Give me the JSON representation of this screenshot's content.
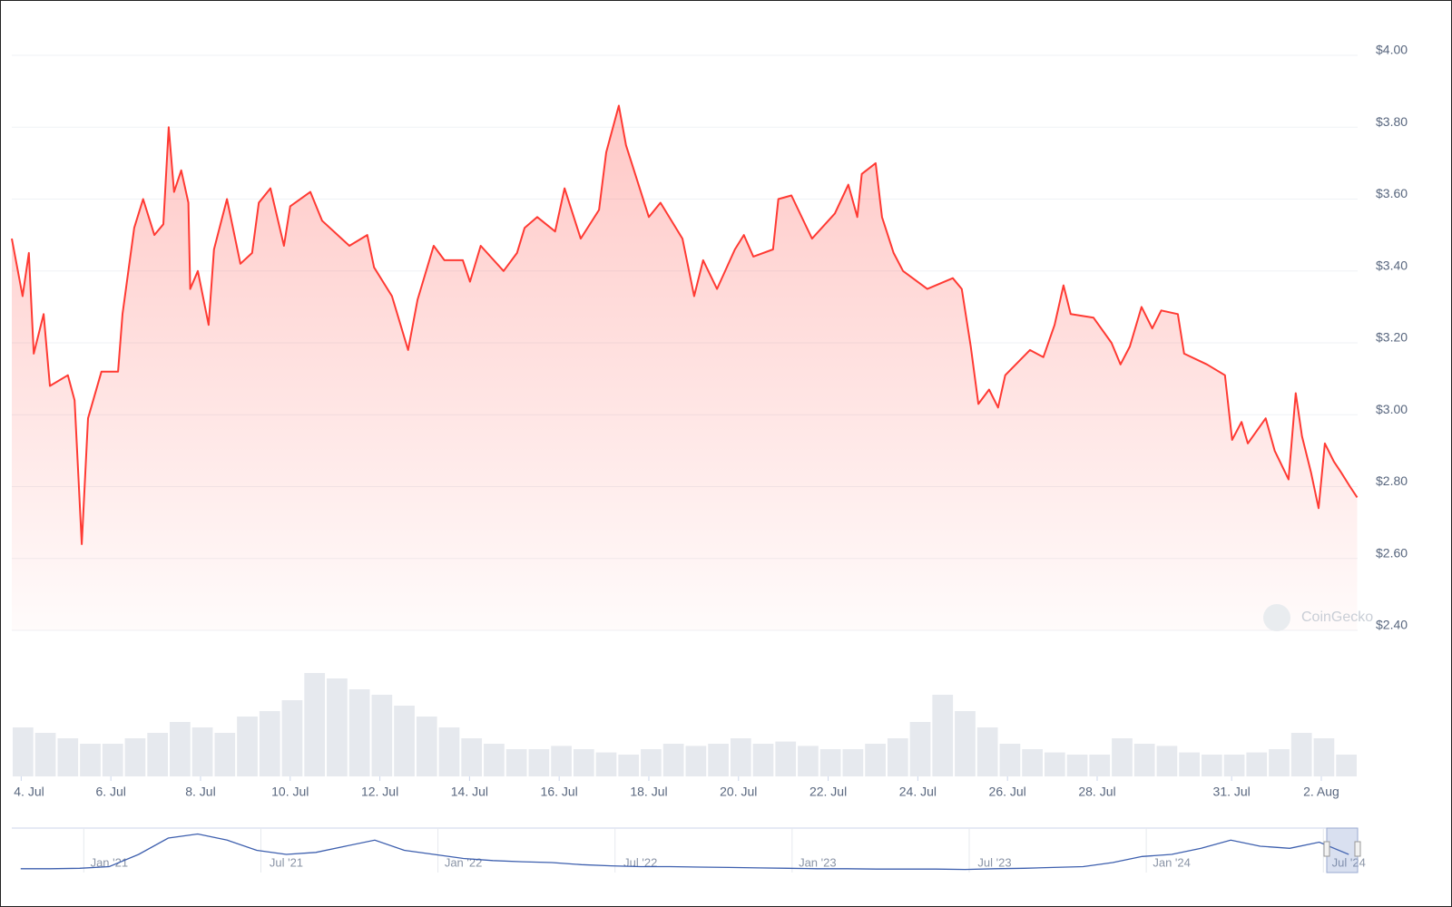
{
  "chart_data": {
    "type": "line",
    "color": "#ff3a33",
    "x": [
      3.79,
      4.03,
      4.17,
      4.28,
      4.5,
      4.64,
      5.04,
      5.19,
      5.35,
      5.49,
      5.79,
      6.16,
      6.26,
      6.52,
      6.72,
      6.97,
      7.17,
      7.29,
      7.41,
      7.57,
      7.73,
      7.77,
      7.94,
      8.18,
      8.3,
      8.59,
      8.89,
      9.15,
      9.3,
      9.56,
      9.86,
      10.0,
      10.45,
      10.71,
      11.32,
      11.72,
      11.87,
      12.27,
      12.63,
      12.84,
      13.2,
      13.44,
      13.85,
      14.01,
      14.25,
      14.76,
      15.06,
      15.23,
      15.51,
      15.91,
      16.12,
      16.48,
      16.89,
      17.05,
      17.33,
      17.49,
      18.0,
      18.26,
      18.75,
      19.01,
      19.21,
      19.52,
      19.92,
      20.12,
      20.33,
      20.77,
      20.89,
      21.18,
      21.64,
      22.15,
      22.45,
      22.65,
      22.75,
      23.06,
      23.2,
      23.46,
      23.67,
      24.21,
      24.78,
      24.98,
      25.18,
      25.35,
      25.59,
      25.79,
      25.95,
      26.5,
      26.8,
      27.05,
      27.25,
      27.41,
      27.92,
      28.32,
      28.52,
      28.73,
      28.99,
      29.23,
      29.43,
      29.8,
      29.94,
      30.45,
      30.85,
      31.01,
      31.22,
      31.36,
      31.76,
      31.96,
      32.27,
      32.43,
      32.57,
      32.77,
      32.94,
      33.08,
      33.28,
      33.44,
      33.64,
      33.8
    ],
    "values": [
      3.49,
      3.33,
      3.45,
      3.17,
      3.28,
      3.08,
      3.11,
      3.04,
      2.64,
      2.99,
      3.12,
      3.12,
      3.28,
      3.52,
      3.6,
      3.5,
      3.53,
      3.8,
      3.62,
      3.68,
      3.59,
      3.35,
      3.4,
      3.25,
      3.46,
      3.6,
      3.42,
      3.45,
      3.59,
      3.63,
      3.47,
      3.58,
      3.62,
      3.54,
      3.47,
      3.5,
      3.41,
      3.33,
      3.18,
      3.32,
      3.47,
      3.43,
      3.43,
      3.37,
      3.47,
      3.4,
      3.45,
      3.52,
      3.55,
      3.51,
      3.63,
      3.49,
      3.57,
      3.73,
      3.86,
      3.75,
      3.55,
      3.59,
      3.49,
      3.33,
      3.43,
      3.35,
      3.46,
      3.5,
      3.44,
      3.46,
      3.6,
      3.61,
      3.49,
      3.56,
      3.64,
      3.55,
      3.67,
      3.7,
      3.55,
      3.45,
      3.4,
      3.35,
      3.38,
      3.35,
      3.19,
      3.03,
      3.07,
      3.02,
      3.11,
      3.18,
      3.16,
      3.25,
      3.36,
      3.28,
      3.27,
      3.2,
      3.14,
      3.19,
      3.3,
      3.24,
      3.29,
      3.28,
      3.17,
      3.14,
      3.11,
      2.93,
      2.98,
      2.92,
      2.99,
      2.9,
      2.82,
      3.06,
      2.94,
      2.84,
      2.74,
      2.92,
      2.87,
      2.84,
      2.8,
      2.77
    ],
    "xlim": [
      3.79,
      33.81
    ],
    "ylim": [
      2.4,
      4.0
    ],
    "xticks": [
      {
        "value": 4,
        "label": "4. Jul"
      },
      {
        "value": 6,
        "label": "6. Jul"
      },
      {
        "value": 8,
        "label": "8. Jul"
      },
      {
        "value": 10,
        "label": "10. Jul"
      },
      {
        "value": 12,
        "label": "12. Jul"
      },
      {
        "value": 14,
        "label": "14. Jul"
      },
      {
        "value": 16,
        "label": "16. Jul"
      },
      {
        "value": 18,
        "label": "18. Jul"
      },
      {
        "value": 20,
        "label": "20. Jul"
      },
      {
        "value": 22,
        "label": "22. Jul"
      },
      {
        "value": 24,
        "label": "24. Jul"
      },
      {
        "value": 26,
        "label": "26. Jul"
      },
      {
        "value": 28,
        "label": "28. Jul"
      },
      {
        "value": 31,
        "label": "31. Jul"
      },
      {
        "value": 33,
        "label": "2. Aug"
      }
    ],
    "yticks": [
      {
        "value": 2.4,
        "label": "$2.40"
      },
      {
        "value": 2.6,
        "label": "$2.60"
      },
      {
        "value": 2.8,
        "label": "$2.80"
      },
      {
        "value": 3.0,
        "label": "$3.00"
      },
      {
        "value": 3.2,
        "label": "$3.20"
      },
      {
        "value": 3.4,
        "label": "$3.40"
      },
      {
        "value": 3.6,
        "label": "$3.60"
      },
      {
        "value": 3.8,
        "label": "$3.80"
      },
      {
        "value": 4.0,
        "label": "$4.00"
      }
    ],
    "grid": true,
    "watermark": "CoinGecko",
    "volume": {
      "color": "#e6e9ee",
      "ylim": [
        0,
        100
      ],
      "values": [
        45,
        40,
        35,
        30,
        30,
        35,
        40,
        50,
        45,
        40,
        55,
        60,
        70,
        95,
        90,
        80,
        75,
        65,
        55,
        45,
        35,
        30,
        25,
        25,
        28,
        25,
        22,
        20,
        25,
        30,
        28,
        30,
        35,
        30,
        32,
        28,
        25,
        25,
        30,
        35,
        50,
        75,
        60,
        45,
        30,
        25,
        22,
        20,
        20,
        35,
        30,
        28,
        22,
        20,
        20,
        22,
        25,
        40,
        35,
        20
      ]
    },
    "navigator": {
      "color": "#3d5fae",
      "xlim": [
        -3.3,
        42.3
      ],
      "ylim": [
        0,
        100
      ],
      "x": [
        -3,
        -2,
        -1,
        0,
        1,
        2,
        3,
        4,
        5,
        6,
        7,
        8,
        9,
        10,
        11,
        12,
        13,
        14,
        15,
        16,
        17,
        18,
        19,
        20,
        21,
        22,
        23,
        24,
        25,
        26,
        27,
        28,
        29,
        30,
        31,
        32,
        33,
        34,
        35,
        36,
        37,
        38,
        39,
        40,
        41,
        42
      ],
      "values": [
        5,
        5,
        6,
        10,
        40,
        80,
        90,
        75,
        50,
        40,
        45,
        60,
        75,
        50,
        40,
        30,
        25,
        22,
        20,
        15,
        12,
        10,
        10,
        9,
        8,
        7,
        6,
        5,
        5,
        4,
        4,
        4,
        3,
        5,
        6,
        8,
        10,
        20,
        35,
        40,
        55,
        75,
        60,
        55,
        70,
        40
      ],
      "xticks": [
        {
          "value": 0,
          "label": "Jan '21"
        },
        {
          "value": 6,
          "label": "Jul '21"
        },
        {
          "value": 12,
          "label": "Jan '22"
        },
        {
          "value": 18,
          "label": "Jul '22"
        },
        {
          "value": 24,
          "label": "Jan '23"
        },
        {
          "value": 30,
          "label": "Jul '23"
        },
        {
          "value": 36,
          "label": "Jan '24"
        },
        {
          "value": 42,
          "label": "Jul '24"
        }
      ]
    }
  }
}
